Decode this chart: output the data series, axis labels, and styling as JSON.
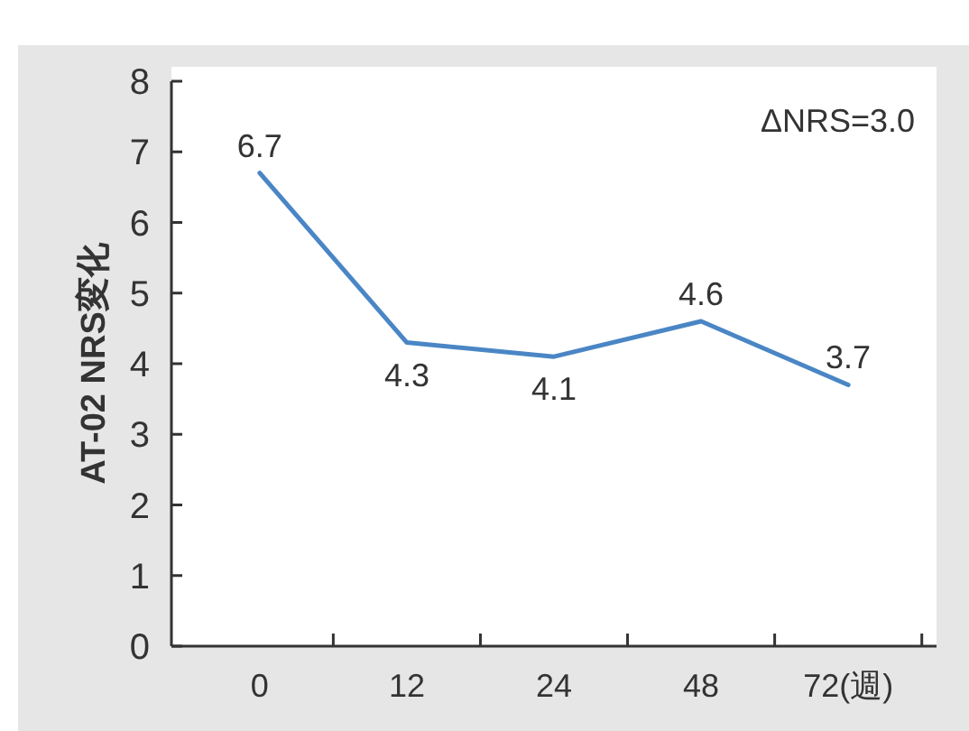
{
  "chart_data": {
    "type": "line",
    "ylabel": "AT-02 NRS変化",
    "categories": [
      "0",
      "12",
      "24",
      "48",
      "72(週)"
    ],
    "series": [
      {
        "color": "#4a86c5",
        "values": [
          6.7,
          4.3,
          4.1,
          4.6,
          3.7
        ]
      }
    ],
    "ylim": [
      0,
      8
    ],
    "yticks": [
      0,
      1,
      2,
      3,
      4,
      5,
      6,
      7,
      8
    ],
    "data_labels": true,
    "grid": false,
    "marker": "none",
    "line_style": "solid",
    "annotations": [
      "ΔNRS=3.0"
    ]
  }
}
